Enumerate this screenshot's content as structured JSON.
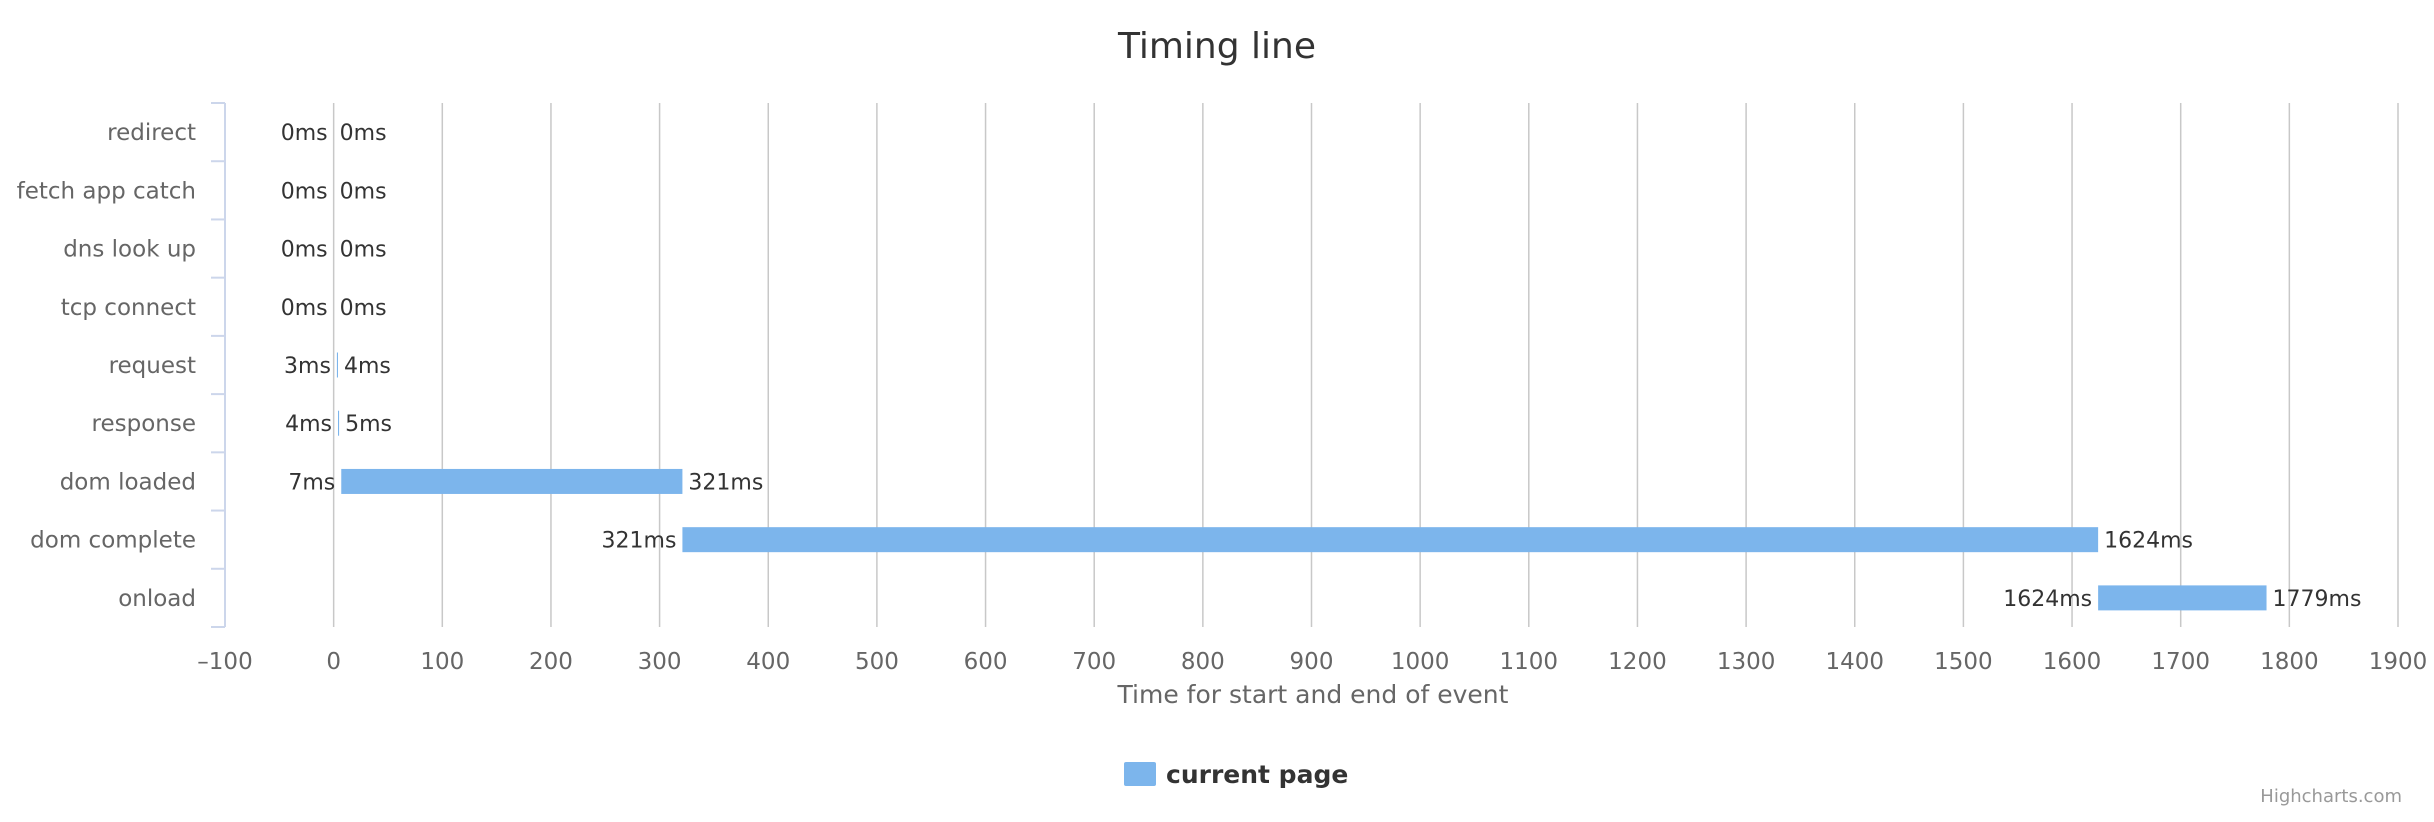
{
  "chart_data": {
    "type": "bar",
    "orientation": "horizontal-floating",
    "title": "Timing line",
    "xlabel": "Time for start and end of event",
    "ylabel": "",
    "xlim": [
      -100,
      1900
    ],
    "x_ticks": [
      -100,
      0,
      100,
      200,
      300,
      400,
      500,
      600,
      700,
      800,
      900,
      1000,
      1100,
      1200,
      1300,
      1400,
      1500,
      1600,
      1700,
      1800,
      1900
    ],
    "categories": [
      "redirect",
      "fetch app catch",
      "dns look up",
      "tcp connect",
      "request",
      "response",
      "dom loaded",
      "dom complete",
      "onload"
    ],
    "series": [
      {
        "name": "current page",
        "ranges": [
          [
            0,
            0
          ],
          [
            0,
            0
          ],
          [
            0,
            0
          ],
          [
            0,
            0
          ],
          [
            3,
            4
          ],
          [
            4,
            5
          ],
          [
            7,
            321
          ],
          [
            321,
            1624
          ],
          [
            1624,
            1779
          ]
        ]
      }
    ],
    "label_suffix": "ms",
    "grid": true,
    "legend": "bottom-center",
    "color": "#7cb5ec",
    "credits": "Highcharts.com"
  }
}
